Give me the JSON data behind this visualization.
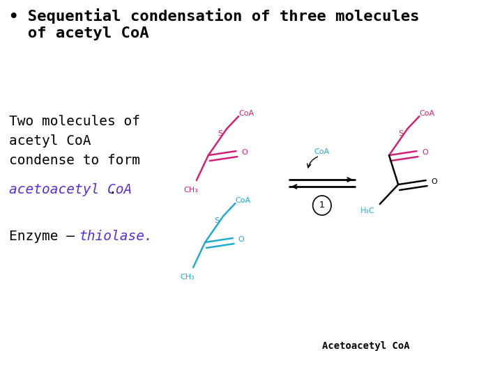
{
  "bg_color": "#ffffff",
  "pink": "#cc2277",
  "cyan": "#22aacc",
  "blue": "#5533cc",
  "black": "#000000",
  "title_text_1": "• Sequential condensation of three molecules",
  "title_text_2": "  of acetyl CoA",
  "body_line1": "Two molecules of",
  "body_line2": "acetyl CoA",
  "body_line3": "condense to form",
  "body_colored": "acetoacetyl CoA",
  "enzyme_prefix": "Enzyme – ",
  "enzyme_word": "thiolase",
  "acetoacetyl_label": "Acetoacetyl CoA"
}
